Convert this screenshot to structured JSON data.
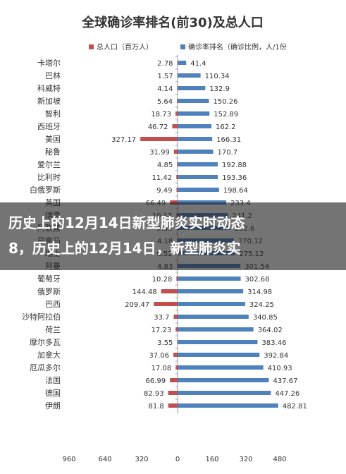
{
  "chart_data": {
    "type": "bar",
    "title": "全球确诊率排名(前30)及总人口",
    "legend": {
      "position": "top",
      "entries": [
        {
          "label": "总人口（百万人）",
          "color": "#c0504d"
        },
        {
          "label": "确诊率排名（确诊比例，人/1份",
          "color": "#4f81bd"
        }
      ]
    },
    "categories": [
      "卡塔尔",
      "巴林",
      "科威特",
      "新加坡",
      "智利",
      "西班牙",
      "美国",
      "秘鲁",
      "爱尔兰",
      "比利时",
      "白俄罗斯",
      "英国",
      "瑞典",
      "阿联酋",
      "巴拿马",
      "瑞士",
      "阿曼",
      "葡萄牙",
      "俄罗斯",
      "巴西",
      "沙特阿拉伯",
      "荷兰",
      "摩尔多瓦",
      "加拿大",
      "厄瓜多尔",
      "法国",
      "德国",
      "伊朗"
    ],
    "series": [
      {
        "name": "总人口（百万人）",
        "color": "#c0504d",
        "values": [
          2.78,
          1.57,
          4.14,
          5.64,
          18.73,
          46.72,
          327.17,
          31.99,
          4.85,
          11.42,
          9.49,
          66.49,
          10.12,
          9.63,
          4.18,
          8.52,
          4.83,
          10.28,
          144.48,
          209.47,
          33.7,
          17.23,
          3.55,
          37.06,
          17.08,
          66.99,
          82.93,
          81.8
        ]
      },
      {
        "name": "确诊率排名（确诊比例，人/1份",
        "color": "#4f81bd",
        "values": [
          41.4,
          110.34,
          132.9,
          150.26,
          152.89,
          162.2,
          166.31,
          170.7,
          192.88,
          193.36,
          198.64,
          233.4,
          241.2,
          252.6,
          270.12,
          275.12,
          301.54,
          302.68,
          314.98,
          324.25,
          340.85,
          364.02,
          383.46,
          392.84,
          410.93,
          437.67,
          447.26,
          482.81
        ]
      }
    ],
    "axis_ticks": [
      "960",
      "640",
      "320",
      "0",
      "160",
      "320",
      "480"
    ],
    "grid": true
  },
  "overlay": {
    "line1": "历史上的12月14日新型肺炎实时动态",
    "line2": "8，历史上的12月14日，新型肺炎实"
  }
}
